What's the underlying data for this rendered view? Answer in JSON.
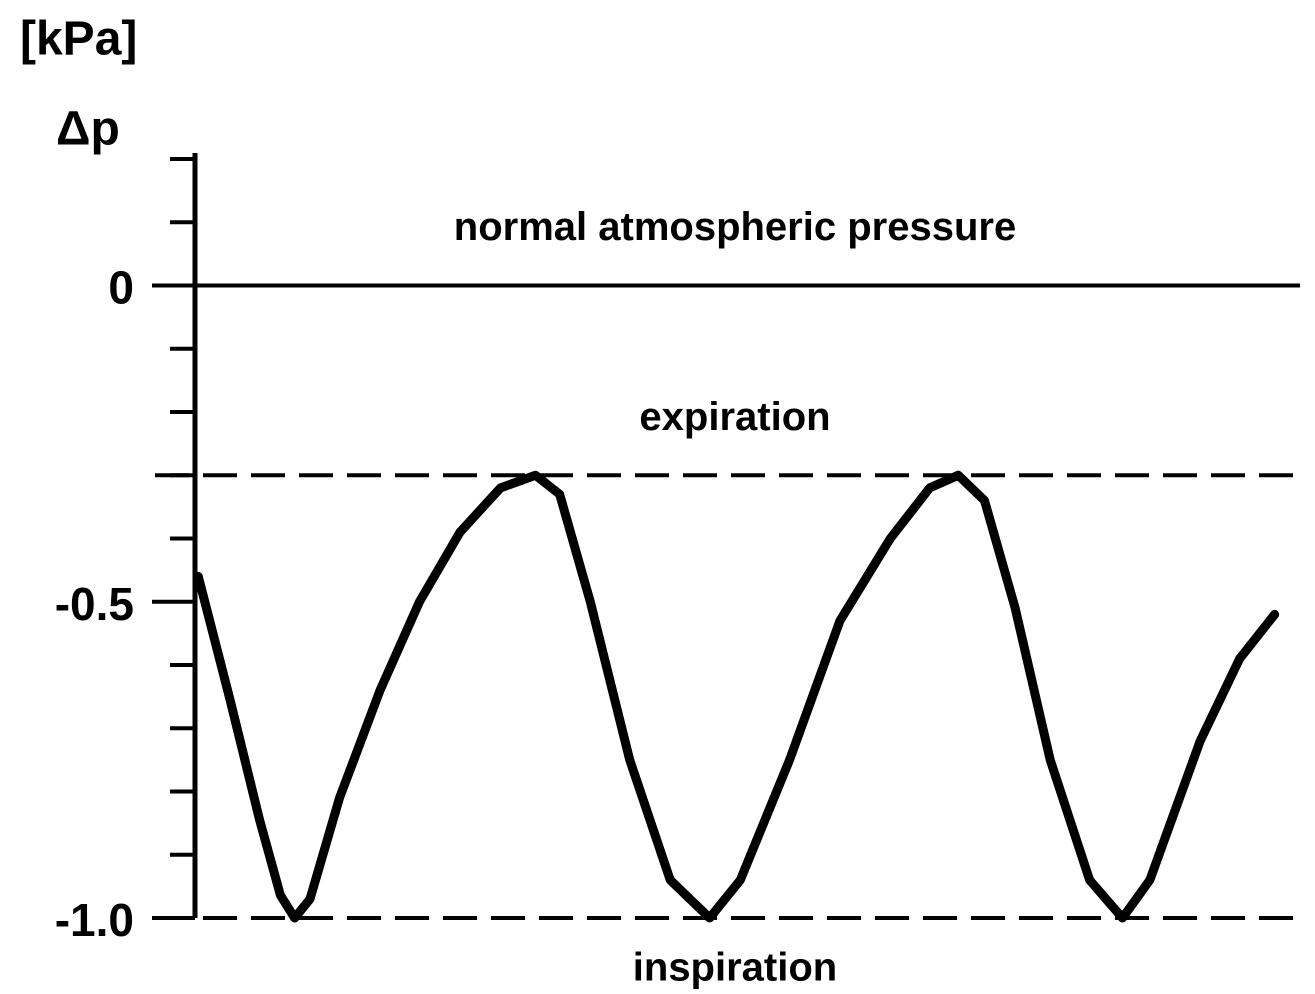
{
  "chart_data": {
    "type": "line",
    "y_unit": "[kPa]",
    "ylabel": "Δp",
    "xlim": [
      0,
      100
    ],
    "ylim": [
      -1.0,
      0.2
    ],
    "yticks": [
      0,
      -0.5,
      {
        "value": -1,
        "label": "-1.0"
      }
    ],
    "yticks_minor": [
      0.2,
      0.1,
      -0.1,
      -0.2,
      -0.3,
      -0.4,
      -0.6,
      -0.7,
      -0.8,
      -0.9
    ],
    "reference_lines": [
      {
        "value": 0,
        "label": "normal atmospheric pressure",
        "style": "solid",
        "label_side": "above"
      },
      {
        "value": -0.3,
        "label": "expiration",
        "style": "dashed",
        "label_side": "above"
      },
      {
        "value": -1,
        "label": "inspiration",
        "style": "dashed",
        "label_side": "below"
      }
    ],
    "series": [
      {
        "color": "#000000",
        "x": [
          0.3,
          3.2,
          5.9,
          7.8,
          9.1,
          10.5,
          13.2,
          16.9,
          20.5,
          24.2,
          27.9,
          31.1,
          33.3,
          36.1,
          39.7,
          43.4,
          47.0,
          49.8,
          54.3,
          58.9,
          63.5,
          67.1,
          69.7,
          72.1,
          74.9,
          78.1,
          81.7,
          84.7,
          87.2,
          91.8,
          95.4,
          98.6
        ],
        "values": [
          -0.46,
          -0.655,
          -0.845,
          -0.964,
          -1.0,
          -0.97,
          -0.81,
          -0.64,
          -0.5,
          -0.39,
          -0.32,
          -0.3,
          -0.33,
          -0.5,
          -0.75,
          -0.94,
          -1.0,
          -0.94,
          -0.75,
          -0.53,
          -0.4,
          -0.32,
          -0.3,
          -0.34,
          -0.51,
          -0.75,
          -0.94,
          -1.0,
          -0.94,
          -0.72,
          -0.59,
          -0.52
        ]
      }
    ]
  }
}
